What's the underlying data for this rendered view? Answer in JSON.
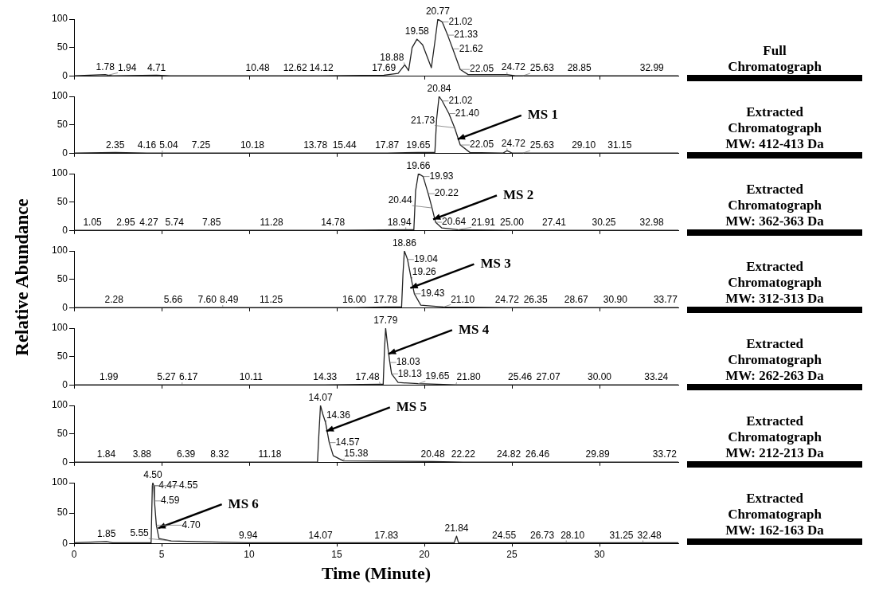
{
  "chart_data": [
    {
      "type": "line",
      "xlim": [
        0,
        34.5
      ],
      "xticks": [
        0,
        5,
        10,
        15,
        20,
        25,
        30
      ],
      "ylim": [
        0,
        100
      ],
      "yticks": [
        0,
        50,
        100
      ],
      "tick_labels": "y",
      "grid": false,
      "legend": false,
      "marker": "none",
      "x": [
        0,
        1.78,
        1.94,
        2.2,
        4.71,
        5.5,
        10.48,
        12.62,
        14.12,
        17.69,
        18.5,
        18.88,
        19.1,
        19.3,
        19.58,
        19.9,
        20.4,
        20.6,
        20.77,
        21.02,
        21.33,
        21.62,
        22.05,
        22.5,
        24.72,
        25.2,
        25.63,
        28.85,
        32.99,
        34.5
      ],
      "series": [
        {
          "color": "#222222",
          "values": [
            1,
            3,
            2,
            1,
            2,
            1,
            1,
            1,
            1,
            2,
            5,
            20,
            10,
            50,
            65,
            55,
            15,
            60,
            100,
            95,
            72,
            48,
            12,
            3,
            3,
            1,
            1,
            1,
            1,
            1
          ]
        }
      ],
      "annotations": [
        "Full Chromatograph",
        {
          "text": "1.78",
          "x": 1.78,
          "y": 3
        },
        {
          "text": "1.94",
          "x": 1.94,
          "y": 2
        },
        {
          "text": "4.71",
          "x": 4.71,
          "y": 2
        },
        {
          "text": "10.48",
          "x": 10.48,
          "y": 1
        },
        {
          "text": "12.62",
          "x": 12.62,
          "y": 1
        },
        {
          "text": "14.12",
          "x": 14.12,
          "y": 1
        },
        {
          "text": "17.69",
          "x": 17.69,
          "y": 2
        },
        {
          "text": "18.88",
          "x": 18.88,
          "y": 20
        },
        {
          "text": "19.58",
          "x": 19.58,
          "y": 65
        },
        {
          "text": "20.77",
          "x": 20.77,
          "y": 100
        },
        {
          "text": "21.02",
          "x": 21.02,
          "y": 95
        },
        {
          "text": "21.33",
          "x": 21.33,
          "y": 72
        },
        {
          "text": "21.62",
          "x": 21.62,
          "y": 48
        },
        {
          "text": "22.05",
          "x": 22.05,
          "y": 12
        },
        {
          "text": "24.72",
          "x": 24.72,
          "y": 3
        },
        {
          "text": "25.63",
          "x": 25.63,
          "y": 1
        },
        {
          "text": "28.85",
          "x": 28.85,
          "y": 1
        },
        {
          "text": "32.99",
          "x": 32.99,
          "y": 1
        }
      ]
    },
    {
      "type": "line",
      "xlim": [
        0,
        34.5
      ],
      "xticks": [
        0,
        5,
        10,
        15,
        20,
        25,
        30
      ],
      "ylim": [
        0,
        100
      ],
      "yticks": [
        0,
        50,
        100
      ],
      "tick_labels": "y",
      "grid": false,
      "legend": false,
      "marker": "none",
      "x": [
        0,
        2.35,
        4.16,
        5.04,
        7.25,
        10.18,
        13.78,
        15.44,
        17.87,
        19.65,
        20.6,
        20.7,
        20.84,
        21.02,
        21.4,
        21.73,
        22.05,
        22.6,
        24.5,
        24.72,
        25,
        25.63,
        29.1,
        31.15,
        34.5
      ],
      "series": [
        {
          "color": "#222222",
          "values": [
            1,
            2,
            1,
            1,
            1,
            1,
            1,
            1,
            1,
            2,
            2,
            60,
            100,
            92,
            70,
            45,
            15,
            2,
            1,
            5,
            1,
            1,
            1,
            1,
            1
          ]
        }
      ],
      "annotations": [
        "Extracted Chromatograph MW: 412-413 Da",
        {
          "text": "MS 1",
          "x": 21.9,
          "y": 25
        },
        {
          "text": "2.35",
          "x": 2.35,
          "y": 2
        },
        {
          "text": "4.16",
          "x": 4.16,
          "y": 1
        },
        {
          "text": "5.04",
          "x": 5.04,
          "y": 1
        },
        {
          "text": "7.25",
          "x": 7.25,
          "y": 1
        },
        {
          "text": "10.18",
          "x": 10.18,
          "y": 1
        },
        {
          "text": "13.78",
          "x": 13.78,
          "y": 1
        },
        {
          "text": "15.44",
          "x": 15.44,
          "y": 1
        },
        {
          "text": "17.87",
          "x": 17.87,
          "y": 1
        },
        {
          "text": "19.65",
          "x": 19.65,
          "y": 2
        },
        {
          "text": "20.84",
          "x": 20.84,
          "y": 100
        },
        {
          "text": "21.02",
          "x": 21.02,
          "y": 92
        },
        {
          "text": "21.40",
          "x": 21.4,
          "y": 70
        },
        {
          "text": "21.73",
          "x": 21.73,
          "y": 45
        },
        {
          "text": "22.05",
          "x": 22.05,
          "y": 15
        },
        {
          "text": "24.72",
          "x": 24.72,
          "y": 5
        },
        {
          "text": "25.63",
          "x": 25.63,
          "y": 1
        },
        {
          "text": "29.10",
          "x": 29.1,
          "y": 1
        },
        {
          "text": "31.15",
          "x": 31.15,
          "y": 1
        }
      ]
    },
    {
      "type": "line",
      "xlim": [
        0,
        34.5
      ],
      "xticks": [
        0,
        5,
        10,
        15,
        20,
        25,
        30
      ],
      "ylim": [
        0,
        100
      ],
      "yticks": [
        0,
        50,
        100
      ],
      "tick_labels": "y",
      "grid": false,
      "legend": false,
      "marker": "none",
      "x": [
        0,
        1.05,
        2.95,
        4.27,
        5.74,
        7.85,
        11.28,
        14.78,
        18.94,
        19.4,
        19.5,
        19.66,
        19.93,
        20.22,
        20.44,
        20.64,
        21,
        21.91,
        25,
        27.41,
        30.25,
        32.98,
        34.5
      ],
      "series": [
        {
          "color": "#222222",
          "values": [
            1,
            1,
            1,
            1,
            1,
            1,
            1,
            1,
            2,
            2,
            70,
            100,
            95,
            65,
            40,
            15,
            5,
            2,
            1,
            1,
            1,
            1,
            1
          ]
        }
      ],
      "annotations": [
        "Extracted Chromatograph MW: 362-363 Da",
        {
          "text": "MS 2",
          "x": 20.5,
          "y": 20
        },
        {
          "text": "1.05",
          "x": 1.05,
          "y": 1
        },
        {
          "text": "2.95",
          "x": 2.95,
          "y": 1
        },
        {
          "text": "4.27",
          "x": 4.27,
          "y": 1
        },
        {
          "text": "5.74",
          "x": 5.74,
          "y": 1
        },
        {
          "text": "7.85",
          "x": 7.85,
          "y": 1
        },
        {
          "text": "11.28",
          "x": 11.28,
          "y": 1
        },
        {
          "text": "14.78",
          "x": 14.78,
          "y": 1
        },
        {
          "text": "18.94",
          "x": 18.94,
          "y": 2
        },
        {
          "text": "19.66",
          "x": 19.66,
          "y": 100
        },
        {
          "text": "19.93",
          "x": 19.93,
          "y": 95
        },
        {
          "text": "20.22",
          "x": 20.22,
          "y": 65
        },
        {
          "text": "20.44",
          "x": 20.44,
          "y": 40
        },
        {
          "text": "20.64",
          "x": 20.64,
          "y": 15
        },
        {
          "text": "21.91",
          "x": 21.91,
          "y": 2
        },
        {
          "text": "25.00",
          "x": 25,
          "y": 1
        },
        {
          "text": "27.41",
          "x": 27.41,
          "y": 1
        },
        {
          "text": "30.25",
          "x": 30.25,
          "y": 1
        },
        {
          "text": "32.98",
          "x": 32.98,
          "y": 1
        }
      ]
    },
    {
      "type": "line",
      "ylabel": "Relative Abundance",
      "xlim": [
        0,
        34.5
      ],
      "xticks": [
        0,
        5,
        10,
        15,
        20,
        25,
        30
      ],
      "ylim": [
        0,
        100
      ],
      "yticks": [
        0,
        50,
        100
      ],
      "tick_labels": "y",
      "grid": false,
      "legend": false,
      "marker": "none",
      "x": [
        0,
        2.28,
        5.66,
        7.6,
        8.49,
        11.25,
        16,
        17.78,
        18.7,
        18.78,
        18.86,
        19.04,
        19.26,
        19.43,
        19.8,
        21.1,
        24.72,
        26.35,
        28.67,
        30.9,
        33.77,
        34.5
      ],
      "series": [
        {
          "color": "#222222",
          "values": [
            1,
            1,
            1,
            1,
            1,
            1,
            1,
            2,
            2,
            60,
            100,
            85,
            50,
            25,
            5,
            2,
            1,
            1,
            1,
            1,
            1,
            1
          ]
        }
      ],
      "annotations": [
        "Extracted Chromatograph MW: 312-313 Da",
        {
          "text": "MS 3",
          "x": 19.2,
          "y": 35
        },
        {
          "text": "2.28",
          "x": 2.28,
          "y": 1
        },
        {
          "text": "5.66",
          "x": 5.66,
          "y": 1
        },
        {
          "text": "7.60",
          "x": 7.6,
          "y": 1
        },
        {
          "text": "8.49",
          "x": 8.49,
          "y": 1
        },
        {
          "text": "11.25",
          "x": 11.25,
          "y": 1
        },
        {
          "text": "16.00",
          "x": 16,
          "y": 1
        },
        {
          "text": "17.78",
          "x": 17.78,
          "y": 2
        },
        {
          "text": "18.86",
          "x": 18.86,
          "y": 100
        },
        {
          "text": "19.04",
          "x": 19.04,
          "y": 85
        },
        {
          "text": "19.26",
          "x": 19.26,
          "y": 50
        },
        {
          "text": "19.43",
          "x": 19.43,
          "y": 25
        },
        {
          "text": "21.10",
          "x": 21.1,
          "y": 2
        },
        {
          "text": "24.72",
          "x": 24.72,
          "y": 1
        },
        {
          "text": "26.35",
          "x": 26.35,
          "y": 1
        },
        {
          "text": "28.67",
          "x": 28.67,
          "y": 1
        },
        {
          "text": "30.90",
          "x": 30.9,
          "y": 1
        },
        {
          "text": "33.77",
          "x": 33.77,
          "y": 1
        }
      ]
    },
    {
      "type": "line",
      "xlim": [
        0,
        34.5
      ],
      "xticks": [
        0,
        5,
        10,
        15,
        20,
        25,
        30
      ],
      "ylim": [
        0,
        100
      ],
      "yticks": [
        0,
        50,
        100
      ],
      "tick_labels": "y",
      "grid": false,
      "legend": false,
      "marker": "none",
      "x": [
        0,
        1.99,
        5.27,
        6.17,
        10.11,
        14.33,
        17.48,
        17.65,
        17.72,
        17.79,
        17.9,
        18.03,
        18.13,
        18.5,
        19.65,
        21.8,
        25.46,
        27.07,
        30,
        33.24,
        34.5
      ],
      "series": [
        {
          "color": "#222222",
          "values": [
            1,
            1,
            1,
            1,
            1,
            1,
            2,
            2,
            60,
            100,
            70,
            40,
            20,
            5,
            3,
            1,
            1,
            1,
            1,
            1,
            1
          ]
        }
      ],
      "annotations": [
        "Extracted Chromatograph MW: 262-263 Da",
        {
          "text": "MS 4",
          "x": 17.95,
          "y": 55
        },
        {
          "text": "1.99",
          "x": 1.99,
          "y": 1
        },
        {
          "text": "5.27",
          "x": 5.27,
          "y": 1
        },
        {
          "text": "6.17",
          "x": 6.17,
          "y": 1
        },
        {
          "text": "10.11",
          "x": 10.11,
          "y": 1
        },
        {
          "text": "14.33",
          "x": 14.33,
          "y": 1
        },
        {
          "text": "17.48",
          "x": 17.48,
          "y": 2
        },
        {
          "text": "17.79",
          "x": 17.79,
          "y": 100
        },
        {
          "text": "18.03",
          "x": 18.03,
          "y": 40
        },
        {
          "text": "18.13",
          "x": 18.13,
          "y": 20
        },
        {
          "text": "19.65",
          "x": 19.65,
          "y": 3
        },
        {
          "text": "21.80",
          "x": 21.8,
          "y": 1
        },
        {
          "text": "25.46",
          "x": 25.46,
          "y": 1
        },
        {
          "text": "27.07",
          "x": 27.07,
          "y": 1
        },
        {
          "text": "30.00",
          "x": 30,
          "y": 1
        },
        {
          "text": "33.24",
          "x": 33.24,
          "y": 1
        }
      ]
    },
    {
      "type": "line",
      "xlim": [
        0,
        34.5
      ],
      "xticks": [
        0,
        5,
        10,
        15,
        20,
        25,
        30
      ],
      "ylim": [
        0,
        100
      ],
      "yticks": [
        0,
        50,
        100
      ],
      "tick_labels": "y",
      "grid": false,
      "legend": false,
      "marker": "none",
      "x": [
        0,
        1.84,
        3.88,
        6.39,
        8.32,
        11.18,
        13.9,
        13.98,
        14.07,
        14.2,
        14.36,
        14.57,
        14.8,
        15.38,
        20.48,
        22.22,
        24.82,
        26.46,
        29.89,
        33.72,
        34.5
      ],
      "series": [
        {
          "color": "#222222",
          "values": [
            1,
            1,
            1,
            1,
            1,
            1,
            1,
            50,
            100,
            85,
            70,
            35,
            12,
            3,
            2,
            1,
            1,
            1,
            1,
            1,
            1
          ]
        }
      ],
      "annotations": [
        "Extracted Chromatograph MW: 212-213 Da",
        {
          "text": "MS 5",
          "x": 14.4,
          "y": 55
        },
        {
          "text": "1.84",
          "x": 1.84,
          "y": 1
        },
        {
          "text": "3.88",
          "x": 3.88,
          "y": 1
        },
        {
          "text": "6.39",
          "x": 6.39,
          "y": 1
        },
        {
          "text": "8.32",
          "x": 8.32,
          "y": 1
        },
        {
          "text": "11.18",
          "x": 11.18,
          "y": 1
        },
        {
          "text": "14.07",
          "x": 14.07,
          "y": 100
        },
        {
          "text": "14.36",
          "x": 14.36,
          "y": 70
        },
        {
          "text": "14.57",
          "x": 14.57,
          "y": 35
        },
        {
          "text": "15.38",
          "x": 15.38,
          "y": 3
        },
        {
          "text": "20.48",
          "x": 20.48,
          "y": 2
        },
        {
          "text": "22.22",
          "x": 22.22,
          "y": 1
        },
        {
          "text": "24.82",
          "x": 24.82,
          "y": 1
        },
        {
          "text": "26.46",
          "x": 26.46,
          "y": 1
        },
        {
          "text": "29.89",
          "x": 29.89,
          "y": 1
        },
        {
          "text": "33.72",
          "x": 33.72,
          "y": 1
        }
      ]
    },
    {
      "type": "line",
      "xlabel": "Time (Minute)",
      "xlim": [
        0,
        34.5
      ],
      "xticks": [
        0,
        5,
        10,
        15,
        20,
        25,
        30
      ],
      "ylim": [
        0,
        100
      ],
      "yticks": [
        0,
        50,
        100
      ],
      "grid": false,
      "legend": false,
      "marker": "none",
      "x": [
        0,
        1.85,
        2.2,
        4.4,
        4.47,
        4.5,
        4.55,
        4.59,
        4.7,
        4.85,
        5.55,
        9.94,
        14.07,
        17.83,
        21.7,
        21.84,
        21.95,
        24.55,
        26.73,
        28.1,
        31.25,
        32.48,
        34.5
      ],
      "series": [
        {
          "color": "#222222",
          "values": [
            1,
            3,
            1,
            1,
            95,
            100,
            95,
            70,
            30,
            8,
            4,
            1,
            1,
            1,
            1,
            12,
            1,
            1,
            1,
            1,
            1,
            1,
            1
          ]
        }
      ],
      "annotations": [
        "Extracted Chromatograph MW: 162-163 Da",
        {
          "text": "MS 6",
          "x": 4.8,
          "y": 25
        },
        {
          "text": "1.85",
          "x": 1.85,
          "y": 3
        },
        {
          "text": "4.47",
          "x": 4.47,
          "y": 95
        },
        {
          "text": "4.50",
          "x": 4.5,
          "y": 100
        },
        {
          "text": "4.55",
          "x": 4.55,
          "y": 95
        },
        {
          "text": "4.59",
          "x": 4.59,
          "y": 70
        },
        {
          "text": "4.70",
          "x": 4.7,
          "y": 30
        },
        {
          "text": "5.55",
          "x": 5.55,
          "y": 4
        },
        {
          "text": "9.94",
          "x": 9.94,
          "y": 1
        },
        {
          "text": "14.07",
          "x": 14.07,
          "y": 1
        },
        {
          "text": "17.83",
          "x": 17.83,
          "y": 1
        },
        {
          "text": "21.84",
          "x": 21.84,
          "y": 12
        },
        {
          "text": "24.55",
          "x": 24.55,
          "y": 1
        },
        {
          "text": "26.73",
          "x": 26.73,
          "y": 1
        },
        {
          "text": "28.10",
          "x": 28.1,
          "y": 1
        },
        {
          "text": "31.25",
          "x": 31.25,
          "y": 1
        },
        {
          "text": "32.48",
          "x": 32.48,
          "y": 1
        }
      ]
    }
  ]
}
